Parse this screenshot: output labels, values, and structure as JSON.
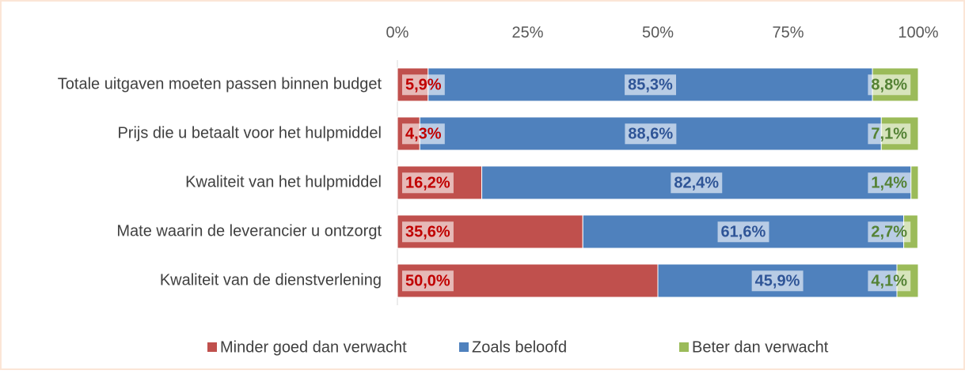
{
  "chart_data": {
    "type": "stacked-bar-horizontal",
    "categories": [
      "Totale uitgaven moeten passen binnen budget",
      "Prijs die u betaalt voor het hulpmiddel",
      "Kwaliteit van het hulpmiddel",
      "Mate waarin de leverancier u ontzorgt",
      "Kwaliteit van de dienstverlening"
    ],
    "series": [
      {
        "name": "Minder goed dan verwacht",
        "color": "#c0504d",
        "label_color": "#c00000",
        "values": [
          5.9,
          4.3,
          16.2,
          35.6,
          50.0
        ],
        "value_labels": [
          "5,9%",
          "4,3%",
          "16,2%",
          "35,6%",
          "50,0%"
        ]
      },
      {
        "name": "Zoals beloofd",
        "color": "#4f81bd",
        "label_color": "#2f5597",
        "values": [
          85.3,
          88.6,
          82.4,
          61.6,
          45.9
        ],
        "value_labels": [
          "85,3%",
          "88,6%",
          "82,4%",
          "61,6%",
          "45,9%"
        ]
      },
      {
        "name": "Beter dan verwacht",
        "color": "#9bbb59",
        "label_color": "#548235",
        "values": [
          8.8,
          7.1,
          1.4,
          2.7,
          4.1
        ],
        "value_labels": [
          "8,8%",
          "7,1%",
          "1,4%",
          "2,7%",
          "4,1%"
        ]
      }
    ],
    "xlim": [
      0,
      100
    ],
    "xticks": [
      {
        "value": 0,
        "label": "0%"
      },
      {
        "value": 25,
        "label": "25%"
      },
      {
        "value": 50,
        "label": "50%"
      },
      {
        "value": 75,
        "label": "75%"
      },
      {
        "value": 100,
        "label": "100%"
      }
    ],
    "legend": "bottom"
  }
}
